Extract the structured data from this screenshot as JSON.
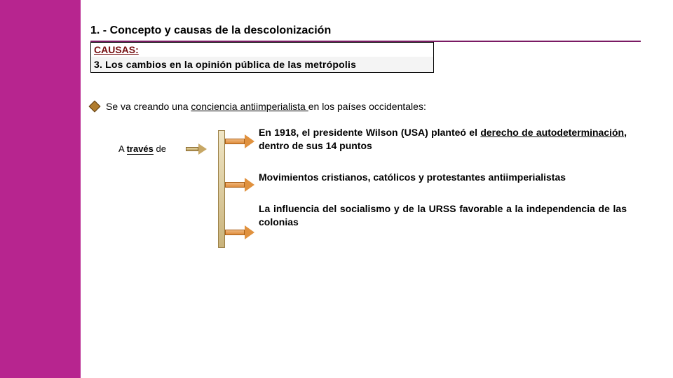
{
  "colors": {
    "accent_strip": "#b7258f",
    "title_rule": "#7a1a63",
    "causas_text": "#760f12",
    "arrow_fill": "#e0913e",
    "arrow_border": "#a85e16",
    "bar_fill_top": "#f0e6c6",
    "bar_fill_bottom": "#c9b37b",
    "bar_border": "#9a7e44",
    "diamond_fill": "#b07c2e"
  },
  "title": "1. - Concepto y causas de la descolonización",
  "causas": {
    "heading": "CAUSAS:",
    "sub": "3. Los cambios en la opinión pública de las metrópolis"
  },
  "lead": {
    "pre": "Se va creando una ",
    "underlined": "conciencia antiimperialista ",
    "post": "en los países occidentales:"
  },
  "atraves": {
    "label_plain": "A ",
    "label_bold_u": "través",
    "label_tail": " de"
  },
  "items": [
    {
      "pre": "En 1918, el presidente Wilson (USA) planteó el ",
      "underlined": "derecho de autodeterminación, ",
      "post": "dentro de sus 14 puntos"
    },
    {
      "pre": "Movimientos  cristianos,  católicos  y  protestantes antiimperialistas",
      "underlined": "",
      "post": ""
    },
    {
      "pre": "La influencia del socialismo y de la URSS favorable a la independencia de las colonias",
      "underlined": "",
      "post": ""
    }
  ]
}
